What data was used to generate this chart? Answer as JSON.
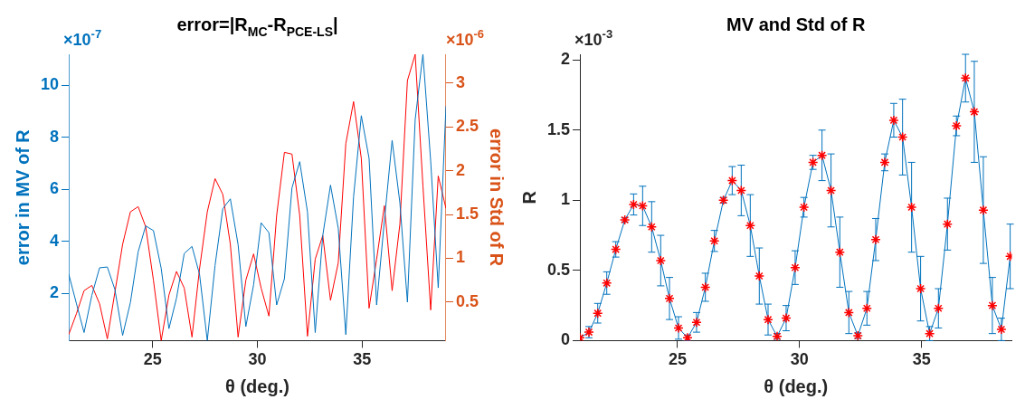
{
  "chart_data": [
    {
      "type": "line",
      "title": "error=|R$_{MC}$-R$_{PCE-LS}$|",
      "xlabel": "θ (deg.)",
      "ylabel": "error in MV of R",
      "y2label": "error in Std of R",
      "annotations": [
        "×10$^{-7}$",
        "×10$^{-6}$"
      ],
      "x": [
        21,
        21.37,
        21.73,
        22.1,
        22.47,
        22.84,
        23.2,
        23.57,
        23.94,
        24.31,
        24.67,
        25.04,
        25.41,
        25.78,
        26.14,
        26.51,
        26.88,
        27.24,
        27.61,
        27.98,
        28.35,
        28.71,
        29.08,
        29.45,
        29.82,
        30.18,
        30.55,
        30.92,
        31.29,
        31.65,
        32.02,
        32.39,
        32.76,
        33.12,
        33.49,
        33.86,
        34.22,
        34.59,
        34.96,
        35.33,
        35.69,
        36.06,
        36.43,
        36.8,
        37.16,
        37.53,
        37.9,
        38.27,
        38.63,
        39
      ],
      "xlim": [
        21,
        39
      ],
      "xticks": [
        25,
        30,
        35
      ],
      "ylim": [
        0.19,
        11.2
      ],
      "yticks": [
        2,
        4,
        6,
        8,
        10
      ],
      "y2lim": [
        0.06,
        3.33
      ],
      "y2ticks": [
        0.5,
        1,
        1.5,
        2,
        2.5,
        3
      ],
      "grid": false,
      "legend": false,
      "marker": "none",
      "line_style": "solid",
      "series": [
        {
          "color": "#0072bd",
          "values": [
            2.74,
            1.6,
            0.5,
            1.93,
            2.99,
            3.02,
            2.16,
            0.39,
            1.65,
            3.6,
            4.6,
            4.42,
            2.97,
            0.65,
            1.82,
            3.54,
            3.81,
            2.74,
            0.19,
            3.08,
            5.26,
            5.64,
            3.88,
            0.73,
            2.34,
            4.72,
            4.34,
            1.56,
            2.57,
            6.06,
            7.07,
            5.14,
            0.5,
            4.23,
            6.17,
            4.51,
            0.42,
            5.72,
            8.84,
            7.2,
            1.56,
            4.8,
            7.89,
            5.49,
            1.67,
            8.69,
            11.2,
            7.09,
            2.22,
            9.21
          ]
        },
        {
          "color": "#ff0000",
          "axis": "y2",
          "values": [
            0.13,
            0.37,
            0.63,
            0.69,
            0.48,
            0.08,
            0.61,
            1.16,
            1.53,
            1.59,
            1.36,
            0.75,
            0.06,
            0.58,
            0.85,
            0.66,
            0.1,
            0.88,
            1.53,
            1.91,
            1.73,
            1.16,
            0.1,
            0.75,
            1.05,
            0.66,
            0.34,
            1.49,
            2.21,
            2.19,
            1.49,
            0.11,
            0.99,
            1.26,
            0.52,
            0.95,
            2.31,
            2.79,
            2.14,
            0.43,
            0.99,
            1.6,
            0.63,
            1.39,
            3.03,
            3.33,
            1.83,
            0.41,
            1.94,
            1.57
          ]
        }
      ]
    },
    {
      "type": "line",
      "title": "MV and Std of R",
      "xlabel": "θ (deg.)",
      "ylabel": "R",
      "annotations": [
        "×10$^{-3}$"
      ],
      "x": [
        21,
        21.37,
        21.73,
        22.1,
        22.47,
        22.84,
        23.2,
        23.57,
        23.94,
        24.31,
        24.67,
        25.04,
        25.41,
        25.78,
        26.14,
        26.51,
        26.88,
        27.24,
        27.61,
        27.98,
        28.35,
        28.71,
        29.08,
        29.45,
        29.82,
        30.18,
        30.55,
        30.92,
        31.29,
        31.65,
        32.02,
        32.39,
        32.76,
        33.12,
        33.49,
        33.86,
        34.22,
        34.59,
        34.96,
        35.33,
        35.69,
        36.06,
        36.43,
        36.8,
        37.16,
        37.53,
        37.9,
        38.27,
        38.63
      ],
      "xlim": [
        21,
        38.7
      ],
      "xticks": [
        25,
        30,
        35
      ],
      "ylim": [
        0,
        2.04
      ],
      "yticks": [
        0,
        0.5,
        1,
        1.5,
        2
      ],
      "grid": false,
      "legend": false,
      "marker": "cross",
      "line_style": "solid",
      "series": [
        {
          "color": "#0072bd",
          "colors": [
            "#ff0000",
            "#ff0000",
            "#ff0000",
            "#ff0000",
            "#ff0000",
            "#ff0000",
            "#ff0000",
            "#ff0000",
            "#ff0000",
            "#ff0000",
            "#ff0000",
            "#ff0000",
            "#ff0000",
            "#ff0000",
            "#ff0000",
            "#ff0000",
            "#ff0000",
            "#ff0000",
            "#ff0000",
            "#ff0000",
            "#ff0000",
            "#ff0000",
            "#ff0000",
            "#ff0000",
            "#ff0000",
            "#ff0000",
            "#ff0000",
            "#ff0000",
            "#ff0000",
            "#ff0000",
            "#ff0000",
            "#ff0000",
            "#ff0000",
            "#ff0000",
            "#ff0000",
            "#ff0000",
            "#ff0000",
            "#ff0000",
            "#ff0000",
            "#ff0000",
            "#ff0000",
            "#ff0000",
            "#ff0000",
            "#ff0000",
            "#ff0000",
            "#ff0000",
            "#ff0000",
            "#ff0000",
            "#ff0000"
          ],
          "values": [
            0.02,
            0.06,
            0.195,
            0.41,
            0.65,
            0.86,
            0.97,
            0.96,
            0.81,
            0.57,
            0.3,
            0.09,
            0.02,
            0.13,
            0.38,
            0.71,
            1,
            1.14,
            1.07,
            0.82,
            0.46,
            0.15,
            0.03,
            0.16,
            0.52,
            0.95,
            1.27,
            1.32,
            1.07,
            0.63,
            0.2,
            0.035,
            0.23,
            0.72,
            1.27,
            1.57,
            1.45,
            0.95,
            0.37,
            0.05,
            0.23,
            0.83,
            1.53,
            1.87,
            1.63,
            0.93,
            0.25,
            0.08,
            0.6
          ],
          "errors": [
            null,
            0.04,
            0.07,
            0.08,
            0.055,
            0.015,
            0.075,
            0.14,
            0.18,
            0.18,
            0.15,
            0.08,
            0.02,
            0.07,
            0.1,
            0.075,
            0.02,
            0.1,
            0.18,
            0.22,
            0.2,
            0.11,
            0.02,
            0.09,
            0.12,
            0.07,
            0.05,
            0.18,
            0.26,
            0.25,
            0.15,
            0.02,
            0.12,
            0.15,
            0.06,
            0.12,
            0.27,
            0.32,
            0.23,
            0.05,
            0.14,
            0.185,
            0.07,
            0.17,
            0.36,
            0.38,
            0.2,
            0.08,
            0.23
          ]
        }
      ]
    }
  ]
}
